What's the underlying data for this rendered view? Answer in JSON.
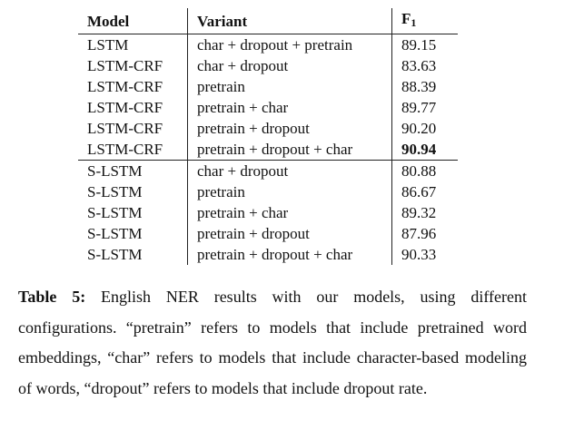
{
  "table": {
    "headers": {
      "model": "Model",
      "variant": "Variant",
      "f1_main": "F",
      "f1_sub": "1"
    },
    "rows": [
      {
        "model": "LSTM",
        "variant": "char + dropout + pretrain",
        "f1": "89.15",
        "bold": false
      },
      {
        "model": "LSTM-CRF",
        "variant": "char + dropout",
        "f1": "83.63",
        "bold": false
      },
      {
        "model": "LSTM-CRF",
        "variant": "pretrain",
        "f1": "88.39",
        "bold": false
      },
      {
        "model": "LSTM-CRF",
        "variant": "pretrain + char",
        "f1": "89.77",
        "bold": false
      },
      {
        "model": "LSTM-CRF",
        "variant": "pretrain + dropout",
        "f1": "90.20",
        "bold": false
      },
      {
        "model": "LSTM-CRF",
        "variant": "pretrain + dropout + char",
        "f1": "90.94",
        "bold": true
      },
      {
        "model": "S-LSTM",
        "variant": "char + dropout",
        "f1": "80.88",
        "bold": false
      },
      {
        "model": "S-LSTM",
        "variant": "pretrain",
        "f1": "86.67",
        "bold": false
      },
      {
        "model": "S-LSTM",
        "variant": "pretrain + char",
        "f1": "89.32",
        "bold": false
      },
      {
        "model": "S-LSTM",
        "variant": "pretrain + dropout",
        "f1": "87.96",
        "bold": false
      },
      {
        "model": "S-LSTM",
        "variant": "pretrain + dropout + char",
        "f1": "90.33",
        "bold": false
      }
    ]
  },
  "caption": {
    "label": "Table 5:",
    "text": "English NER results with our models, using different configurations. “pretrain” refers to models that include pretrained word embeddings, “char” refers to models that include character-based modeling of words, “dropout” refers to models that include dropout rate."
  }
}
